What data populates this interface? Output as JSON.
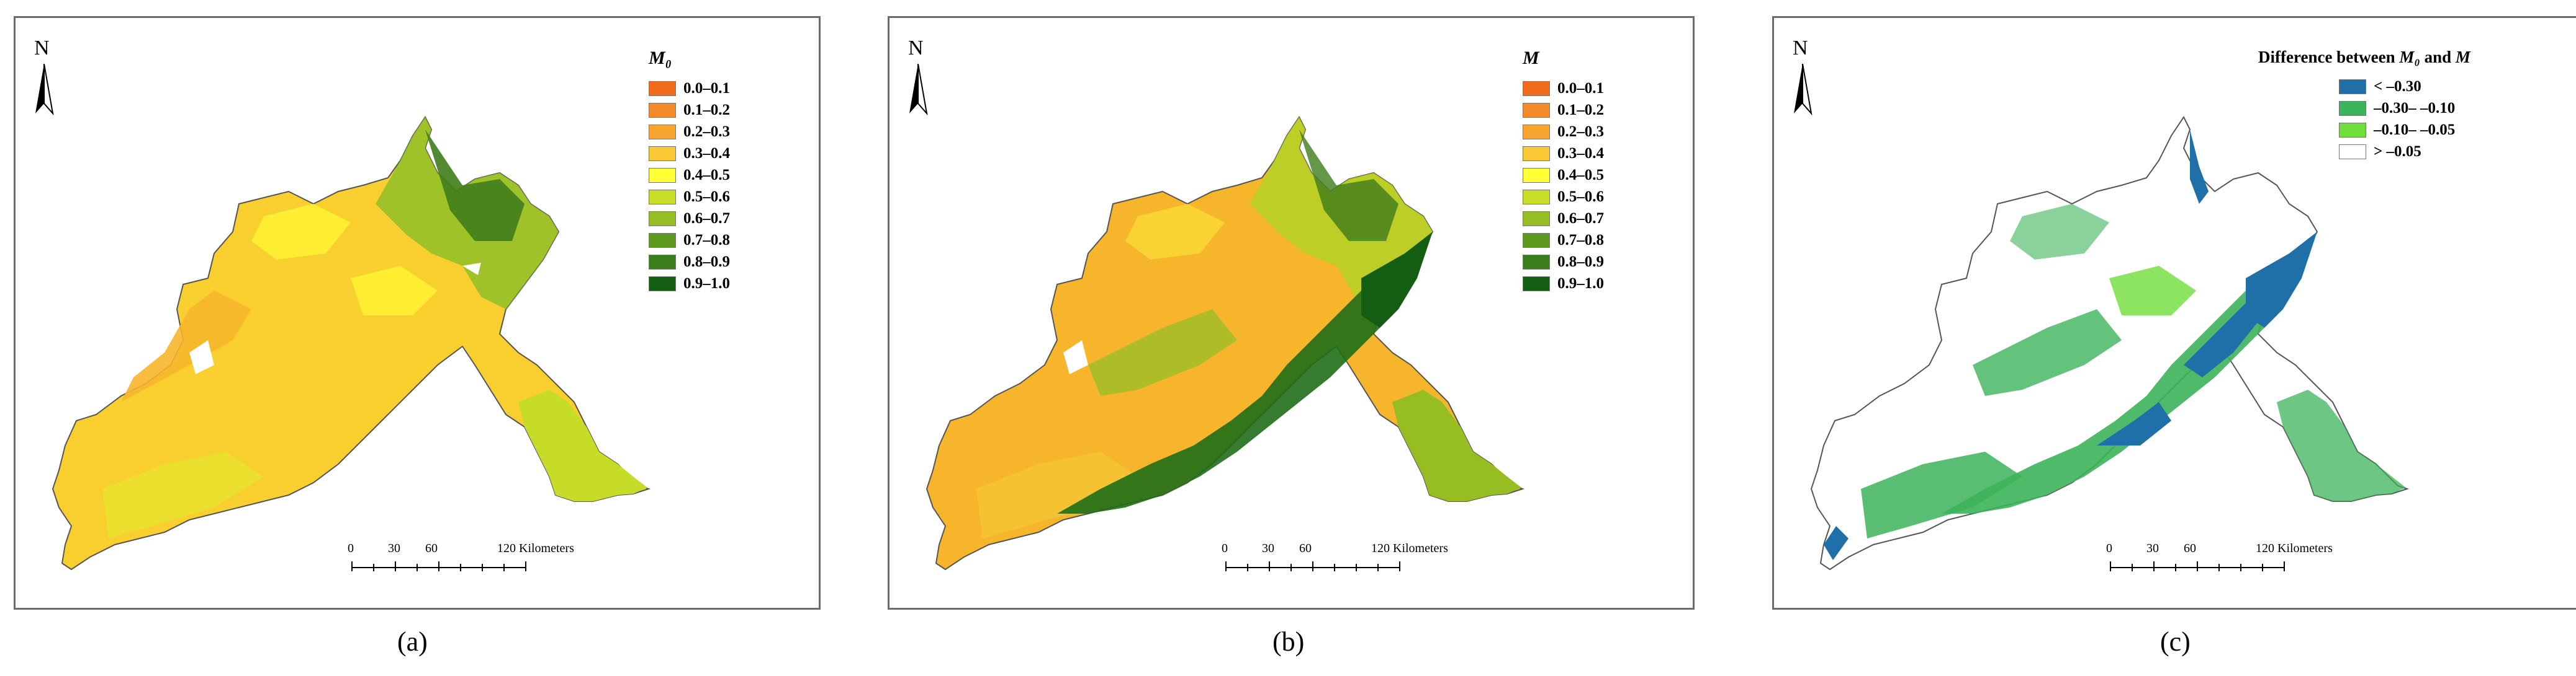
{
  "panels": {
    "a": {
      "north_label": "N",
      "legend_title": "M₀",
      "legend": [
        {
          "label": "0.0–0.1",
          "color": "#f26b1d"
        },
        {
          "label": "0.1–0.2",
          "color": "#f58a2a"
        },
        {
          "label": "0.2–0.3",
          "color": "#f7a52e"
        },
        {
          "label": "0.3–0.4",
          "color": "#f8c835"
        },
        {
          "label": "0.4–0.5",
          "color": "#ffff33"
        },
        {
          "label": "0.5–0.6",
          "color": "#c8dc28"
        },
        {
          "label": "0.6–0.7",
          "color": "#96bd22"
        },
        {
          "label": "0.7–0.8",
          "color": "#5e9a1d"
        },
        {
          "label": "0.8–0.9",
          "color": "#3b7d1a"
        },
        {
          "label": "0.9–1.0",
          "color": "#145e14"
        }
      ],
      "scale_labels": [
        "0",
        "30",
        "60",
        "120 Kilometers"
      ],
      "caption": "(a)"
    },
    "b": {
      "north_label": "N",
      "legend_title": "M",
      "legend": [
        {
          "label": "0.0–0.1",
          "color": "#f26b1d"
        },
        {
          "label": "0.1–0.2",
          "color": "#f58a2a"
        },
        {
          "label": "0.2–0.3",
          "color": "#f7a52e"
        },
        {
          "label": "0.3–0.4",
          "color": "#f8c835"
        },
        {
          "label": "0.4–0.5",
          "color": "#ffff33"
        },
        {
          "label": "0.5–0.6",
          "color": "#c8dc28"
        },
        {
          "label": "0.6–0.7",
          "color": "#96bd22"
        },
        {
          "label": "0.7–0.8",
          "color": "#5e9a1d"
        },
        {
          "label": "0.8–0.9",
          "color": "#3b7d1a"
        },
        {
          "label": "0.9–1.0",
          "color": "#145e14"
        }
      ],
      "scale_labels": [
        "0",
        "30",
        "60",
        "120 Kilometers"
      ],
      "caption": "(b)"
    },
    "c": {
      "north_label": "N",
      "legend_title_prefix": "Difference between ",
      "legend_title_m0": "M₀",
      "legend_title_mid": " and ",
      "legend_title_m": "M",
      "legend": [
        {
          "label": "< –0.30",
          "color": "#1f6fa8"
        },
        {
          "label": "–0.30– –0.10",
          "color": "#3cb35a"
        },
        {
          "label": "–0.10– –0.05",
          "color": "#6fdd3a"
        },
        {
          "label": "> –0.05",
          "color": "#ffffff"
        }
      ],
      "scale_labels": [
        "0",
        "30",
        "60",
        "120 Kilometers"
      ],
      "caption": "(c)"
    }
  }
}
